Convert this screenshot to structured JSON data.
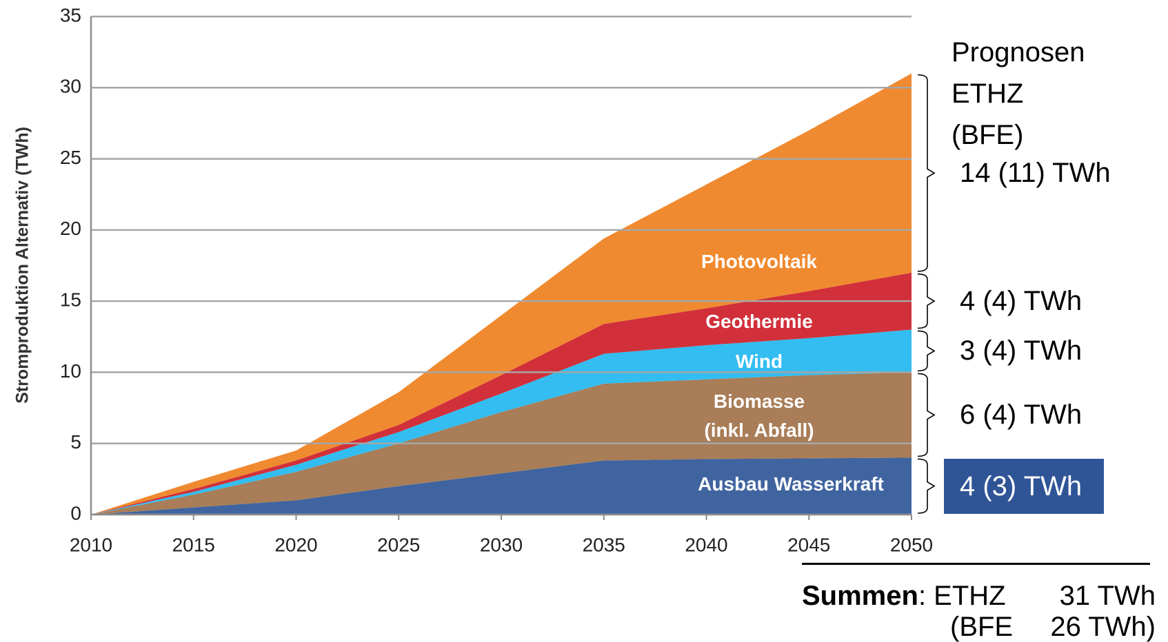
{
  "chart_data": {
    "type": "stacked_area",
    "y_label": "Stromproduktion Alternativ (TWh)",
    "x": [
      2010,
      2015,
      2020,
      2025,
      2030,
      2035,
      2040,
      2045,
      2050
    ],
    "xlim": [
      2010,
      2050
    ],
    "xticks": [
      2010,
      2015,
      2020,
      2025,
      2030,
      2035,
      2040,
      2045,
      2050
    ],
    "ylim": [
      0,
      35
    ],
    "yticks": [
      0,
      5,
      10,
      15,
      20,
      25,
      30,
      35
    ],
    "grid": true,
    "series": [
      {
        "name": "Ausbau Wasserkraft",
        "color": "#3f64a0",
        "values": [
          0,
          0.5,
          1.0,
          2.0,
          2.9,
          3.8,
          3.9,
          3.95,
          4.0
        ]
      },
      {
        "name": "Biomasse (inkl. Abfall)",
        "color": "#a87d57",
        "values": [
          0,
          0.9,
          2.0,
          3.0,
          4.3,
          5.4,
          5.6,
          5.85,
          6.0
        ]
      },
      {
        "name": "Wind",
        "color": "#33bdf0",
        "values": [
          0,
          0.2,
          0.5,
          0.8,
          1.3,
          2.1,
          2.4,
          2.6,
          3.0
        ]
      },
      {
        "name": "Geothermie",
        "color": "#d1303a",
        "values": [
          0,
          0.2,
          0.3,
          0.5,
          1.3,
          2.1,
          2.6,
          3.3,
          4.0
        ]
      },
      {
        "name": "Photovoltaik",
        "color": "#f08a30",
        "values": [
          0,
          0.5,
          0.7,
          2.3,
          4.2,
          6.0,
          8.7,
          11.3,
          14.0
        ]
      }
    ],
    "forecast_title": "Prognosen ETHZ (BFE)",
    "bracket_labels": [
      "4 (3) TWh",
      "6 (4) TWh",
      "3 (4) TWh",
      "4 (4) TWh",
      "14 (11) TWh"
    ],
    "sum_label": "Summen",
    "sum_ethz_label": ": ETHZ",
    "sum_ethz_value": "31 TWh",
    "sum_bfe_label": "(BFE",
    "sum_bfe_value": "26 TWh)"
  }
}
